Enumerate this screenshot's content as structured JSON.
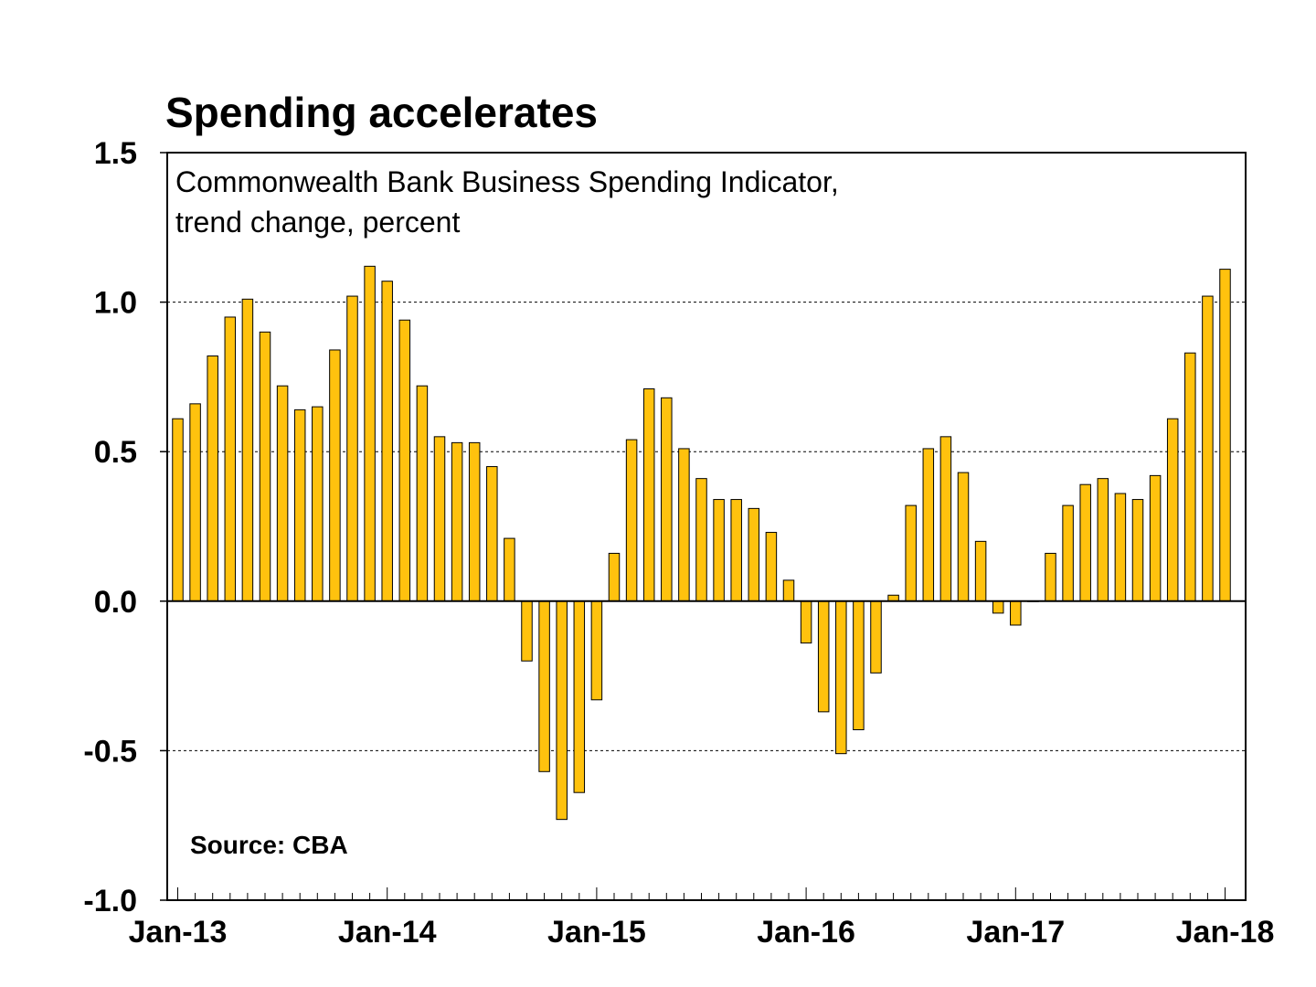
{
  "chart_data": {
    "type": "bar",
    "title": "Spending accelerates",
    "subtitle_lines": [
      "Commonwealth Bank Business Spending Indicator,",
      "trend change, percent"
    ],
    "source": "Source: CBA",
    "xlabel": "",
    "ylabel": "",
    "ylim": [
      -1.0,
      1.5
    ],
    "yticks": [
      1.5,
      1.0,
      0.5,
      0.0,
      -0.5,
      -1.0
    ],
    "ytick_labels": [
      "1.5",
      "1.0",
      "0.5",
      "0.0",
      "-0.5",
      "-1.0"
    ],
    "xtick_labels": [
      "Jan-13",
      "Jan-14",
      "Jan-15",
      "Jan-16",
      "Jan-17",
      "Jan-18"
    ],
    "grid": "horizontal dotted",
    "bar_color": "#FFC20E",
    "bar_edge_color": "#000000",
    "categories": [
      "Jan-13",
      "Feb-13",
      "Mar-13",
      "Apr-13",
      "May-13",
      "Jun-13",
      "Jul-13",
      "Aug-13",
      "Sep-13",
      "Oct-13",
      "Nov-13",
      "Dec-13",
      "Jan-14",
      "Feb-14",
      "Mar-14",
      "Apr-14",
      "May-14",
      "Jun-14",
      "Jul-14",
      "Aug-14",
      "Sep-14",
      "Oct-14",
      "Nov-14",
      "Dec-14",
      "Jan-15",
      "Feb-15",
      "Mar-15",
      "Apr-15",
      "May-15",
      "Jun-15",
      "Jul-15",
      "Aug-15",
      "Sep-15",
      "Oct-15",
      "Nov-15",
      "Dec-15",
      "Jan-16",
      "Feb-16",
      "Mar-16",
      "Apr-16",
      "May-16",
      "Jun-16",
      "Jul-16",
      "Aug-16",
      "Sep-16",
      "Oct-16",
      "Nov-16",
      "Dec-16",
      "Jan-17",
      "Feb-17",
      "Mar-17",
      "Apr-17",
      "May-17",
      "Jun-17",
      "Jul-17",
      "Aug-17",
      "Sep-17",
      "Oct-17",
      "Nov-17",
      "Dec-17",
      "Jan-18"
    ],
    "values": [
      0.61,
      0.66,
      0.82,
      0.95,
      1.01,
      0.9,
      0.72,
      0.64,
      0.65,
      0.84,
      1.02,
      1.12,
      1.07,
      0.94,
      0.72,
      0.55,
      0.53,
      0.53,
      0.45,
      0.21,
      -0.2,
      -0.57,
      -0.73,
      -0.64,
      -0.33,
      0.16,
      0.54,
      0.71,
      0.68,
      0.51,
      0.41,
      0.34,
      0.34,
      0.31,
      0.23,
      0.07,
      -0.14,
      -0.37,
      -0.51,
      -0.43,
      -0.24,
      0.02,
      0.32,
      0.51,
      0.55,
      0.43,
      0.2,
      -0.04,
      -0.08,
      0.0,
      0.16,
      0.32,
      0.39,
      0.41,
      0.36,
      0.34,
      0.42,
      0.61,
      0.83,
      1.02,
      1.11
    ]
  }
}
